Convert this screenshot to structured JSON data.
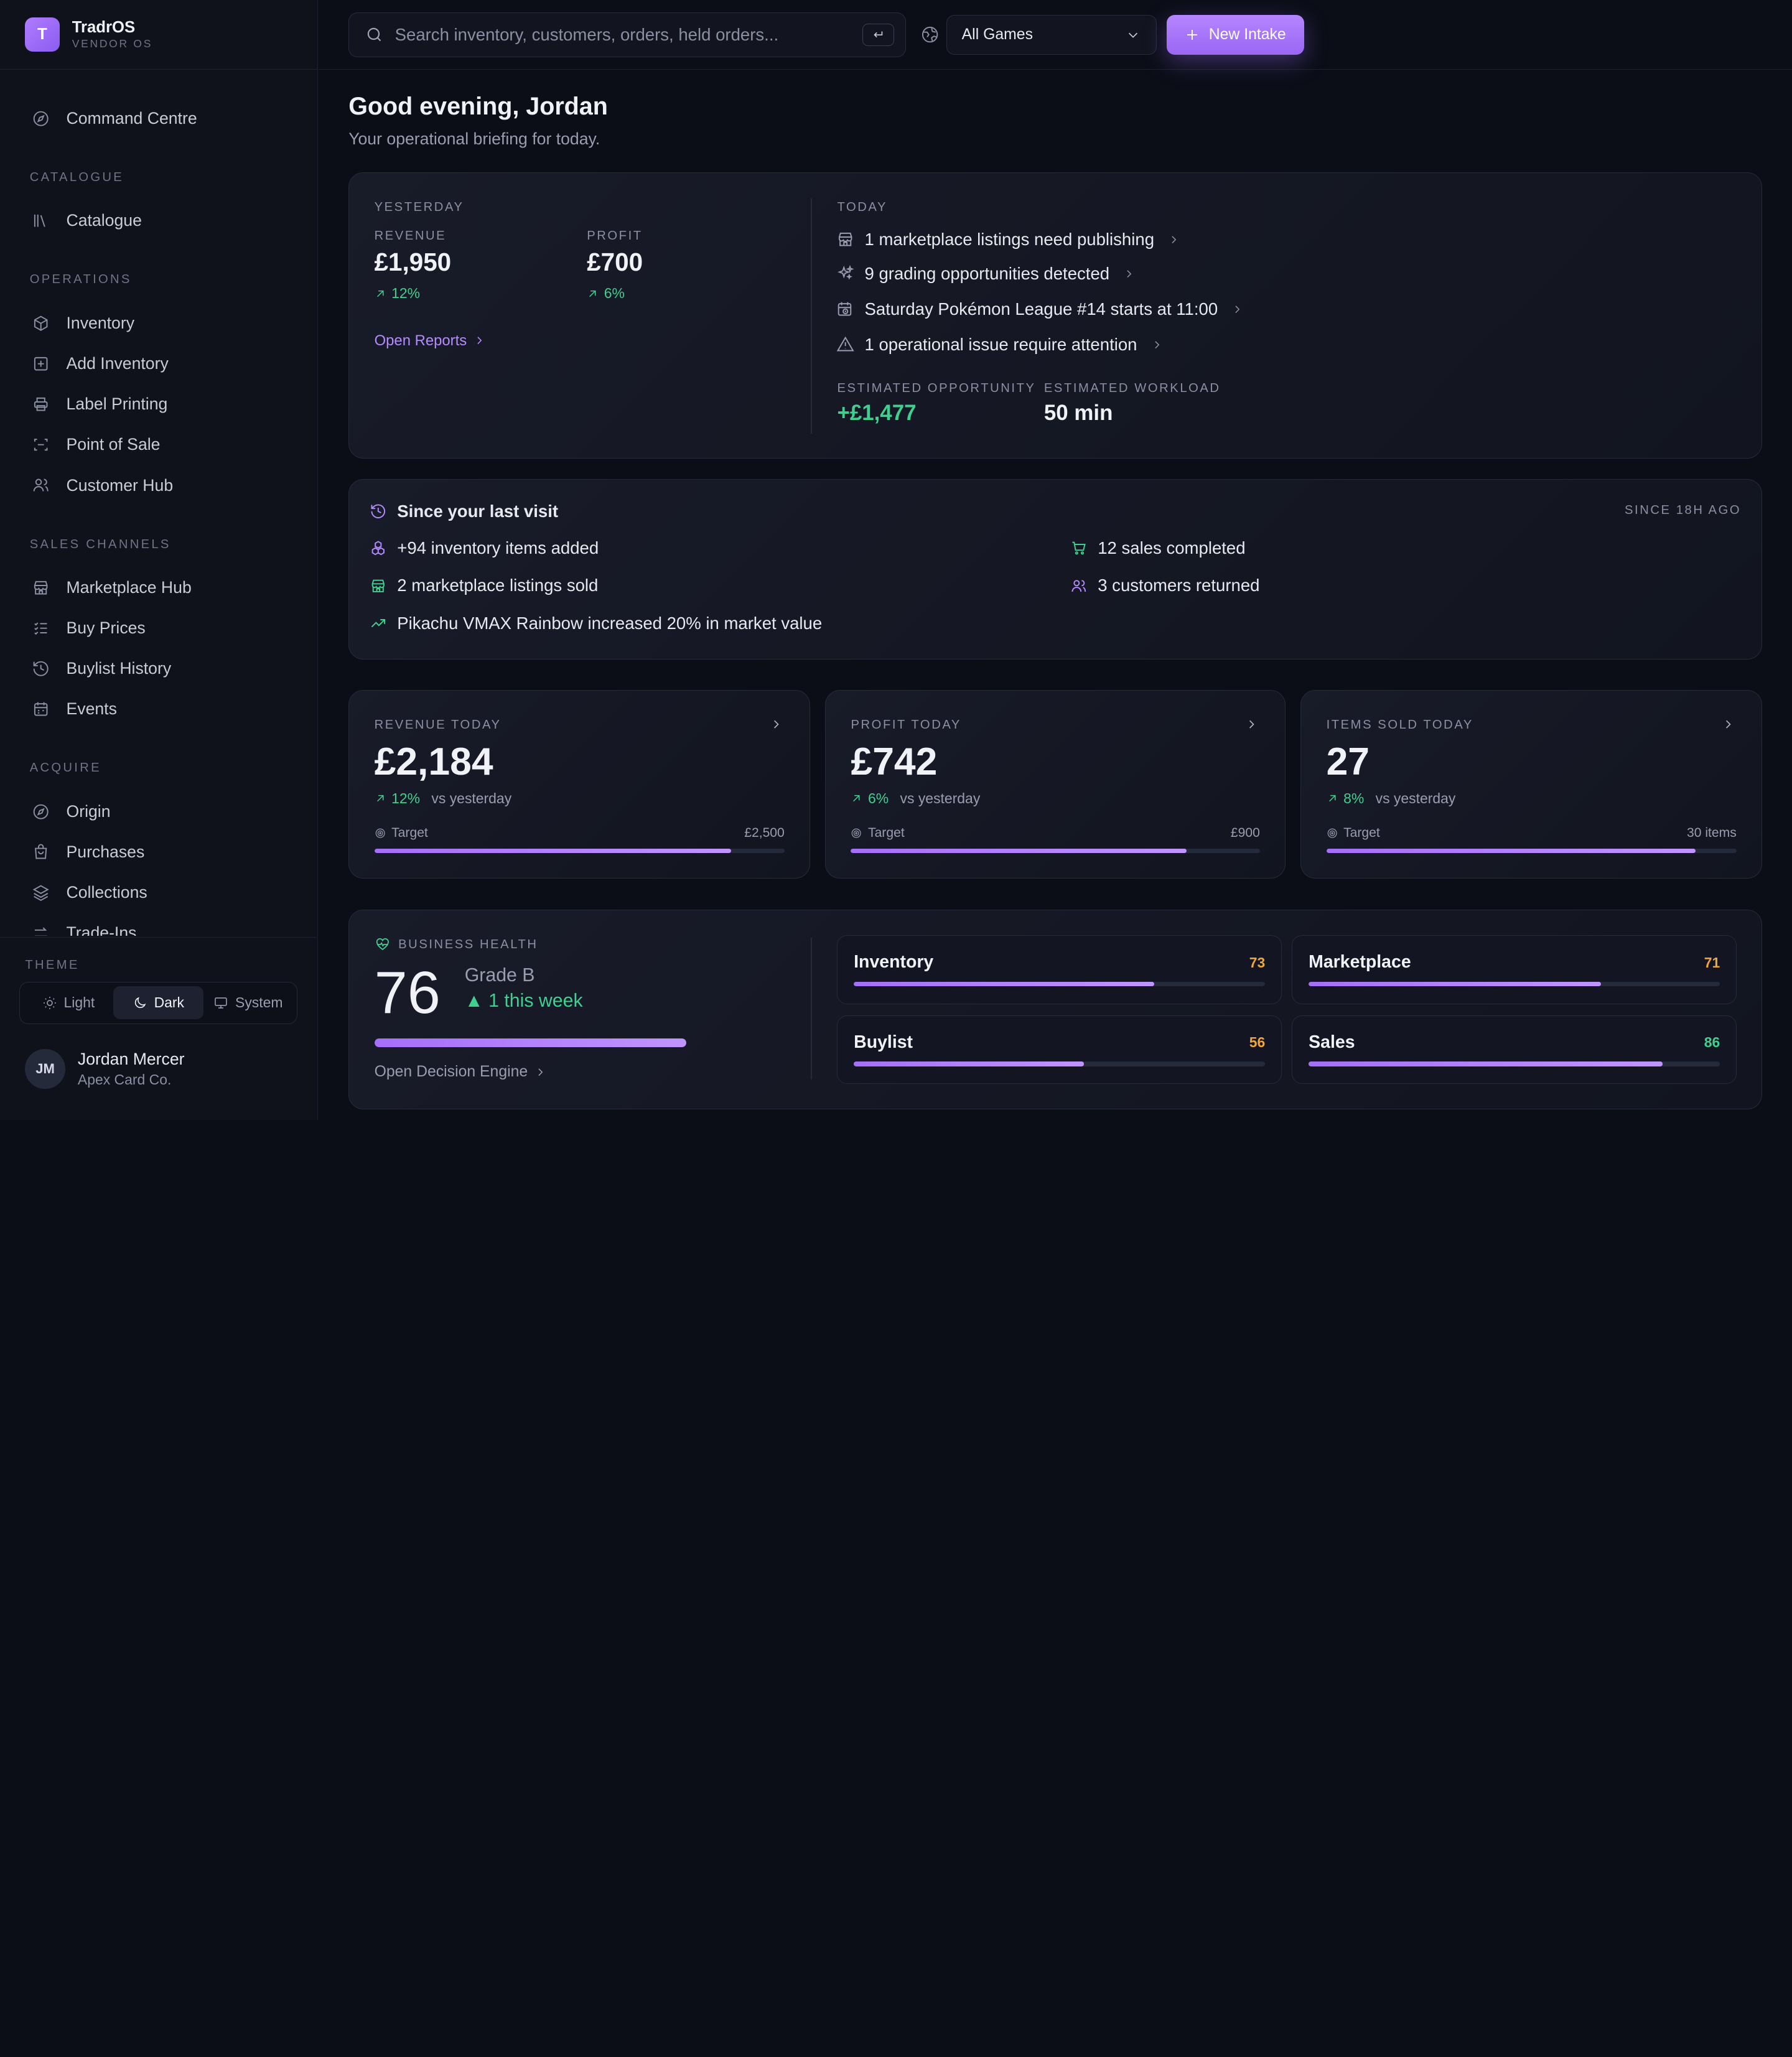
{
  "brand": {
    "name": "TradrOS",
    "sub": "VENDOR OS",
    "logo_letter": "T"
  },
  "sidebar": {
    "top": {
      "label": "Command Centre",
      "icon": "compass-icon"
    },
    "sections": [
      {
        "heading": "CATALOGUE",
        "items": [
          {
            "label": "Catalogue",
            "icon": "books-icon"
          }
        ]
      },
      {
        "heading": "OPERATIONS",
        "items": [
          {
            "label": "Inventory",
            "icon": "box-icon"
          },
          {
            "label": "Add Inventory",
            "icon": "plus-square-icon"
          },
          {
            "label": "Label Printing",
            "icon": "printer-icon"
          },
          {
            "label": "Point of Sale",
            "icon": "scan-icon"
          },
          {
            "label": "Customer Hub",
            "icon": "users-icon"
          }
        ]
      },
      {
        "heading": "SALES CHANNELS",
        "items": [
          {
            "label": "Marketplace Hub",
            "icon": "store-icon"
          },
          {
            "label": "Buy Prices",
            "icon": "list-check-icon"
          },
          {
            "label": "Buylist History",
            "icon": "history-icon"
          },
          {
            "label": "Events",
            "icon": "calendar-icon"
          }
        ]
      },
      {
        "heading": "ACQUIRE",
        "items": [
          {
            "label": "Origin",
            "icon": "compass-icon"
          },
          {
            "label": "Purchases",
            "icon": "bag-icon"
          },
          {
            "label": "Collections",
            "icon": "layers-icon"
          },
          {
            "label": "Trade-Ins",
            "icon": "exchange-icon"
          }
        ]
      }
    ],
    "theme": {
      "label": "THEME",
      "options": [
        "Light",
        "Dark",
        "System"
      ],
      "selected": "Dark"
    },
    "user": {
      "initials": "JM",
      "name": "Jordan Mercer",
      "org": "Apex Card Co."
    }
  },
  "topbar": {
    "search_placeholder": "Search inventory, customers, orders, held orders...",
    "game_filter": "All Games",
    "new_button": "New Intake"
  },
  "header": {
    "greeting": "Good evening, Jordan",
    "subtitle": "Your operational briefing for today."
  },
  "briefing": {
    "yesterday": {
      "label": "YESTERDAY",
      "revenue_label": "REVENUE",
      "revenue": "£1,950",
      "revenue_change": "12%",
      "profit_label": "PROFIT",
      "profit": "£700",
      "profit_change": "6%",
      "link": "Open Reports"
    },
    "today": {
      "label": "TODAY",
      "items": [
        {
          "text": "1 marketplace listings need publishing",
          "icon": "store-icon"
        },
        {
          "text": "9 grading opportunities detected",
          "icon": "sparkles-icon"
        },
        {
          "text": "Saturday Pokémon League #14 starts at 11:00",
          "icon": "calendar-clock-icon"
        },
        {
          "text": "1 operational issue require attention",
          "icon": "warning-icon"
        }
      ],
      "opportunity_label": "ESTIMATED OPPORTUNITY",
      "opportunity": "+£1,477",
      "workload_label": "ESTIMATED WORKLOAD",
      "workload": "50 min"
    }
  },
  "since": {
    "title": "Since your last visit",
    "meta": "SINCE 18H AGO",
    "items": [
      {
        "text": "+94 inventory items added",
        "icon": "boxes-icon",
        "color": "#b48cff"
      },
      {
        "text": "12 sales completed",
        "icon": "cart-icon",
        "color": "#3fcf8e"
      },
      {
        "text": "2 marketplace listings sold",
        "icon": "store-icon",
        "color": "#3fcf8e"
      },
      {
        "text": "3 customers returned",
        "icon": "users-icon",
        "color": "#b48cff"
      },
      {
        "text": "Pikachu VMAX Rainbow increased 20% in market value",
        "icon": "trending-up-icon",
        "color": "#3fcf8e"
      }
    ]
  },
  "kpis": [
    {
      "label": "REVENUE TODAY",
      "value": "£2,184",
      "change": "12%",
      "vs": "vs yesterday",
      "target_label": "Target",
      "target": "£2,500",
      "progress": 0.87
    },
    {
      "label": "PROFIT TODAY",
      "value": "£742",
      "change": "6%",
      "vs": "vs yesterday",
      "target_label": "Target",
      "target": "£900",
      "progress": 0.82
    },
    {
      "label": "ITEMS SOLD TODAY",
      "value": "27",
      "change": "8%",
      "vs": "vs yesterday",
      "target_label": "Target",
      "target": "30 items",
      "progress": 0.9
    }
  ],
  "health": {
    "label": "BUSINESS HEALTH",
    "score": "76",
    "grade": "Grade B",
    "delta": "▲ 1 this week",
    "progress": 0.76,
    "link": "Open Decision Engine",
    "areas": [
      {
        "name": "Inventory",
        "score": "73",
        "value": 0.73,
        "color": "#f0a53a"
      },
      {
        "name": "Marketplace",
        "score": "71",
        "value": 0.71,
        "color": "#f0a53a"
      },
      {
        "name": "Buylist",
        "score": "56",
        "value": 0.56,
        "color": "#f0a53a"
      },
      {
        "name": "Sales",
        "score": "86",
        "value": 0.86,
        "color": "#3fcf8e"
      }
    ]
  }
}
